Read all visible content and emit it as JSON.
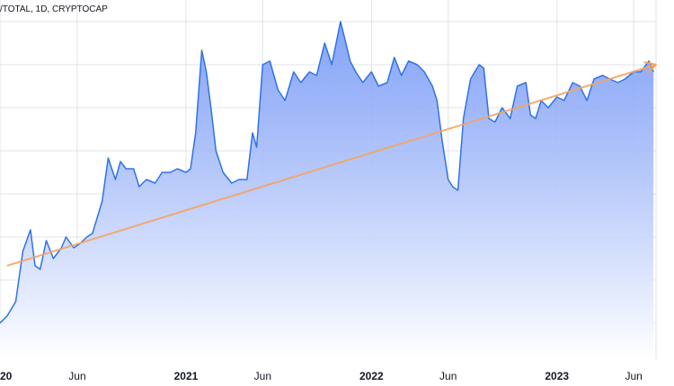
{
  "title": "/TOTAL, 1D, CRYPTOCAP",
  "colors": {
    "line": "#2f72e8",
    "area_top": "#6f93f6",
    "area_bottom": "#ffffff",
    "trend": "#f4a460",
    "grid": "#e1e3e8"
  },
  "chart_data": {
    "type": "area",
    "x_domain": [
      "2020-01-01",
      "2023-07-15"
    ],
    "y_domain": [
      0,
      100
    ],
    "grid": true,
    "x_ticks": [
      {
        "label": "20",
        "date": "2020-01-01",
        "bold": true
      },
      {
        "label": "Jun",
        "date": "2020-06-01",
        "bold": false
      },
      {
        "label": "2021",
        "date": "2021-01-01",
        "bold": true
      },
      {
        "label": "Jun",
        "date": "2021-06-01",
        "bold": false
      },
      {
        "label": "2022",
        "date": "2022-01-01",
        "bold": true
      },
      {
        "label": "Jun",
        "date": "2022-06-01",
        "bold": false
      },
      {
        "label": "2023",
        "date": "2023-01-01",
        "bold": true
      },
      {
        "label": "Jun",
        "date": "2023-06-01",
        "bold": false
      }
    ],
    "series": [
      {
        "x": [
          "2020-01-01",
          "2020-01-15",
          "2020-02-01",
          "2020-02-15",
          "2020-03-01",
          "2020-03-10",
          "2020-03-20",
          "2020-04-01",
          "2020-04-15",
          "2020-05-01",
          "2020-05-10",
          "2020-05-25",
          "2020-06-05",
          "2020-06-20",
          "2020-07-01",
          "2020-07-20",
          "2020-08-01",
          "2020-08-15",
          "2020-08-25",
          "2020-09-05",
          "2020-09-20",
          "2020-10-01",
          "2020-10-15",
          "2020-11-01",
          "2020-11-15",
          "2020-12-01",
          "2020-12-15",
          "2021-01-01",
          "2021-01-10",
          "2021-01-20",
          "2021-02-01",
          "2021-02-10",
          "2021-02-20",
          "2021-03-01",
          "2021-03-15",
          "2021-04-01",
          "2021-04-15",
          "2021-05-01",
          "2021-05-12",
          "2021-05-20",
          "2021-06-01",
          "2021-06-15",
          "2021-07-01",
          "2021-07-15",
          "2021-08-01",
          "2021-08-15",
          "2021-09-01",
          "2021-09-15",
          "2021-10-01",
          "2021-10-15",
          "2021-11-01",
          "2021-11-10",
          "2021-11-20",
          "2021-12-01",
          "2021-12-15",
          "2022-01-01",
          "2022-01-15",
          "2022-02-01",
          "2022-02-15",
          "2022-03-01",
          "2022-03-15",
          "2022-04-01",
          "2022-04-15",
          "2022-05-01",
          "2022-05-10",
          "2022-05-20",
          "2022-06-01",
          "2022-06-10",
          "2022-06-20",
          "2022-07-01",
          "2022-07-15",
          "2022-08-01",
          "2022-08-10",
          "2022-08-20",
          "2022-09-01",
          "2022-09-15",
          "2022-10-01",
          "2022-10-15",
          "2022-11-01",
          "2022-11-10",
          "2022-11-20",
          "2022-12-01",
          "2022-12-15",
          "2023-01-01",
          "2023-01-15",
          "2023-02-01",
          "2023-02-15",
          "2023-03-01",
          "2023-03-15",
          "2023-04-01",
          "2023-04-15",
          "2023-05-01",
          "2023-05-15",
          "2023-06-01",
          "2023-06-15",
          "2023-07-01",
          "2023-07-10"
        ],
        "y": [
          10,
          12,
          16,
          30,
          36,
          26,
          25,
          33,
          28,
          31,
          34,
          31,
          32,
          34,
          35,
          44,
          56,
          50,
          55,
          53,
          53,
          48,
          50,
          49,
          52,
          52,
          53,
          52,
          53,
          63,
          86,
          80,
          69,
          58,
          52,
          49,
          50,
          50,
          63,
          59,
          82,
          83,
          75,
          72,
          80,
          77,
          80,
          79,
          88,
          82,
          94,
          89,
          83,
          80,
          77,
          80,
          76,
          77,
          84,
          79,
          83,
          82,
          80,
          76,
          72,
          61,
          50,
          48,
          47,
          67,
          78,
          82,
          81,
          67,
          66,
          70,
          67,
          76,
          77,
          68,
          67,
          72,
          70,
          73,
          72,
          77,
          76,
          72,
          78,
          79,
          78,
          77,
          78,
          80,
          80,
          83,
          80
        ]
      }
    ],
    "trend_line": {
      "x": [
        "2020-01-15",
        "2023-07-15"
      ],
      "y": [
        26,
        82
      ]
    }
  }
}
